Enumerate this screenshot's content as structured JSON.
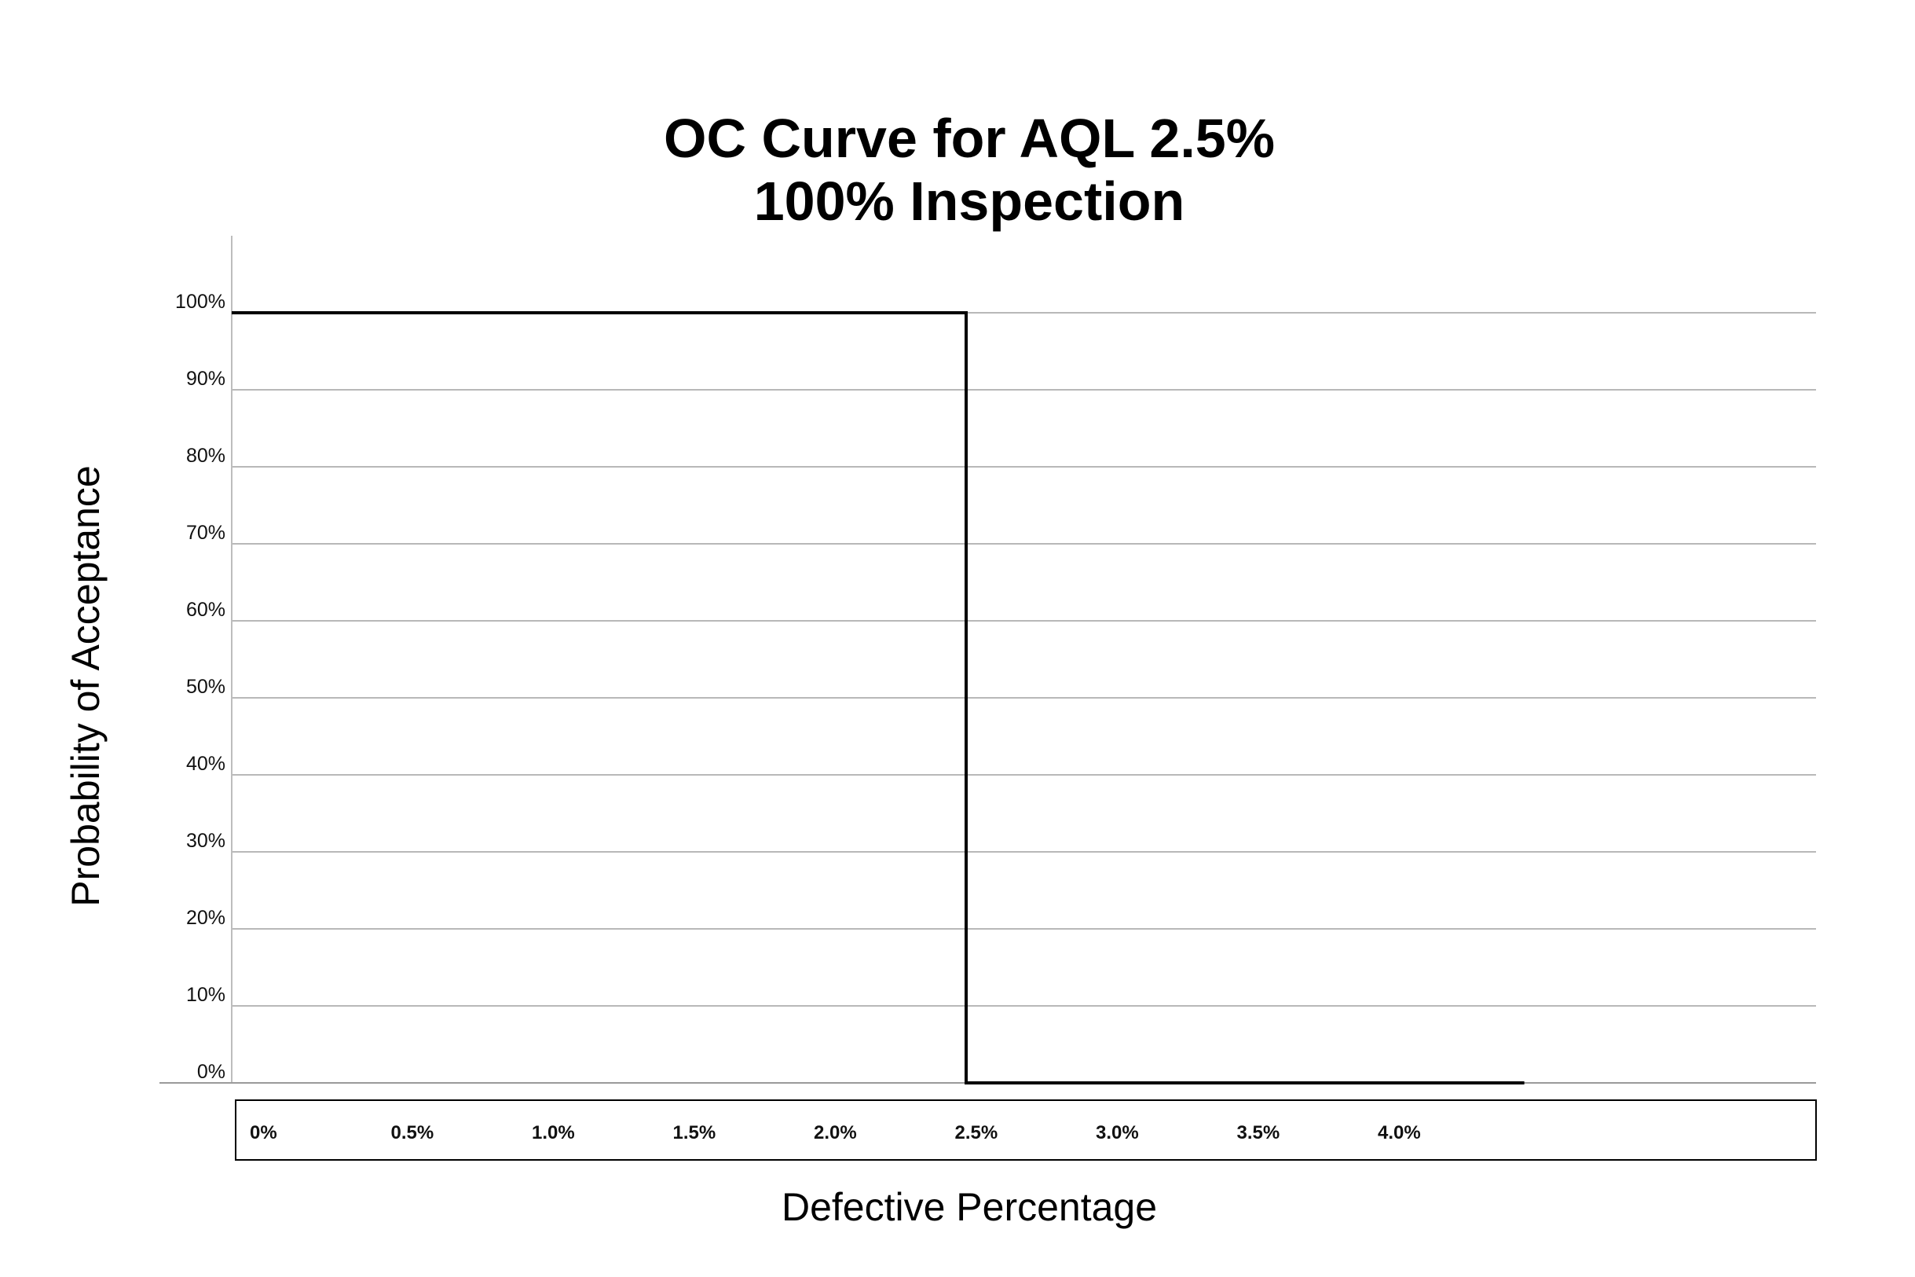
{
  "chart_data": {
    "type": "line",
    "title": [
      "OC Curve for AQL 2.5%",
      "100% Inspection"
    ],
    "xlabel": "Defective Percentage",
    "ylabel": "Probability of Acceptance",
    "x_tick_labels": [
      "0%",
      "0.5%",
      "1.0%",
      "1.5%",
      "2.0%",
      "2.5%",
      "3.0%",
      "3.5%",
      "4.0%"
    ],
    "x_tick_values": [
      0,
      0.5,
      1.0,
      1.5,
      2.0,
      2.5,
      3.0,
      3.5,
      4.0
    ],
    "y_tick_labels": [
      "0%",
      "10%",
      "20%",
      "30%",
      "40%",
      "50%",
      "60%",
      "70%",
      "80%",
      "90%",
      "100%"
    ],
    "y_tick_values": [
      0,
      10,
      20,
      30,
      40,
      50,
      60,
      70,
      80,
      90,
      100
    ],
    "xlim": [
      0,
      5.6
    ],
    "ylim": [
      0,
      100
    ],
    "grid": "horizontal",
    "series": [
      {
        "x": [
          0,
          2.5,
          2.5,
          4.4
        ],
        "y": [
          100,
          100,
          0,
          0
        ],
        "color": "#000000"
      }
    ]
  }
}
